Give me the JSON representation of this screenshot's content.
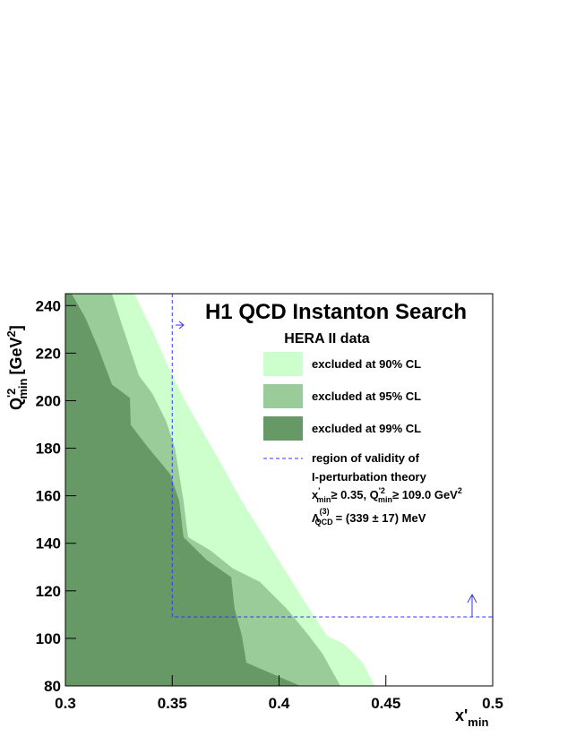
{
  "chart_data": {
    "type": "area",
    "title": "H1 QCD Instanton Search",
    "subtitle": "HERA II data",
    "xlabel": {
      "main": "x'",
      "sub": "min"
    },
    "ylabel": {
      "main": "Q",
      "sup": "'2",
      "sub": "min",
      "unit": "[GeV",
      "unit_sup": "2",
      "close": "]"
    },
    "xlim": [
      0.3,
      0.5
    ],
    "ylim": [
      80,
      245
    ],
    "xticks": [
      0.3,
      0.35,
      0.4,
      0.45,
      0.5
    ],
    "yticks": [
      80,
      100,
      120,
      140,
      160,
      180,
      200,
      220,
      240
    ],
    "series": [
      {
        "name": "excluded at 90% CL",
        "color": "#ccffcc",
        "x": [
          0.3323,
          0.3407,
          0.3491,
          0.3553,
          0.3637,
          0.3721,
          0.3826,
          0.3931,
          0.4036,
          0.414,
          0.4224,
          0.4308,
          0.4392,
          0.4447
        ],
        "y": [
          245,
          229.4,
          212.5,
          201.1,
          187.9,
          174.7,
          157.7,
          142.6,
          127.5,
          112.5,
          101.1,
          97.4,
          89.8,
          80
        ]
      },
      {
        "name": "excluded at 95% CL",
        "color": "#99cc99",
        "x": [
          0.3218,
          0.326,
          0.3302,
          0.3344,
          0.3407,
          0.347,
          0.3512,
          0.3553,
          0.3574,
          0.3679,
          0.3784,
          0.391,
          0.4036,
          0.414,
          0.4203,
          0.4287
        ],
        "y": [
          245,
          233.2,
          221.9,
          210.6,
          203.0,
          191.7,
          180.4,
          157.7,
          142.6,
          137.0,
          129.4,
          123.8,
          112.5,
          101.1,
          93.6,
          80
        ]
      },
      {
        "name": "excluded at 99% CL",
        "color": "#669966",
        "x": [
          0.3029,
          0.3092,
          0.3155,
          0.3218,
          0.3302,
          0.3306,
          0.3386,
          0.3491,
          0.3533,
          0.3553,
          0.3658,
          0.3776,
          0.3792,
          0.3826,
          0.3847,
          0.4099
        ],
        "y": [
          245,
          235.1,
          221.9,
          206.8,
          201.1,
          189.8,
          180.4,
          169.1,
          157.7,
          142.6,
          133.2,
          125.7,
          112.5,
          101.1,
          89.8,
          80
        ]
      }
    ],
    "validity": {
      "name": "region of validity of",
      "color": "#3333ff",
      "x": [
        0.35,
        0.35,
        0.5
      ],
      "y": [
        245,
        109,
        109
      ]
    },
    "validity_note": {
      "line1": "I-perturbation theory",
      "line2": [
        "x",
        "'",
        "min",
        "≥ 0.35,  Q",
        "'2",
        "min",
        "≥ 109.0 GeV",
        "2"
      ],
      "line3": [
        "Λ",
        "(3)",
        "QCD",
        "= (339 ± 17) MeV"
      ]
    }
  }
}
